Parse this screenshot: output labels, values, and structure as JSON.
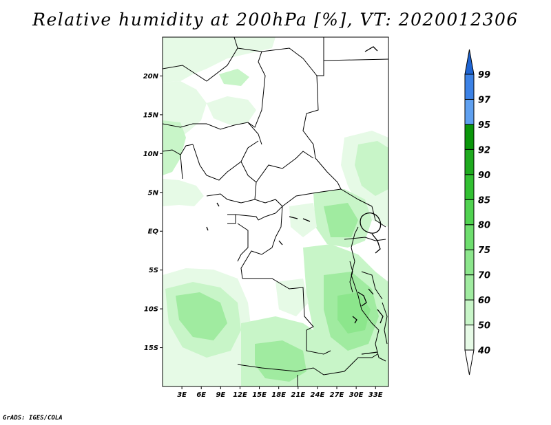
{
  "title": "Relative humidity at 200hPa [%], VT: 2020012306",
  "credit": "GrADS: IGES/COLA",
  "map": {
    "lon_range": [
      0,
      35
    ],
    "lat_range": [
      -20,
      25
    ],
    "lat_ticks": [
      "20N",
      "15N",
      "10N",
      "5N",
      "EQ",
      "5S",
      "10S",
      "15S"
    ],
    "lon_ticks": [
      "3E",
      "6E",
      "9E",
      "12E",
      "15E",
      "18E",
      "21E",
      "24E",
      "27E",
      "30E",
      "33E"
    ]
  },
  "colorbar": {
    "labels": [
      "40",
      "50",
      "60",
      "70",
      "75",
      "80",
      "85",
      "90",
      "92",
      "95",
      "97",
      "99"
    ],
    "colors": [
      "#ffffff",
      "#e6fae6",
      "#c8f5c8",
      "#a0eba0",
      "#8ce68c",
      "#6ede6e",
      "#50d250",
      "#32c032",
      "#1eaa1e",
      "#0a960a",
      "#5fa0f0",
      "#3c82e6",
      "#1e64d2"
    ]
  }
}
